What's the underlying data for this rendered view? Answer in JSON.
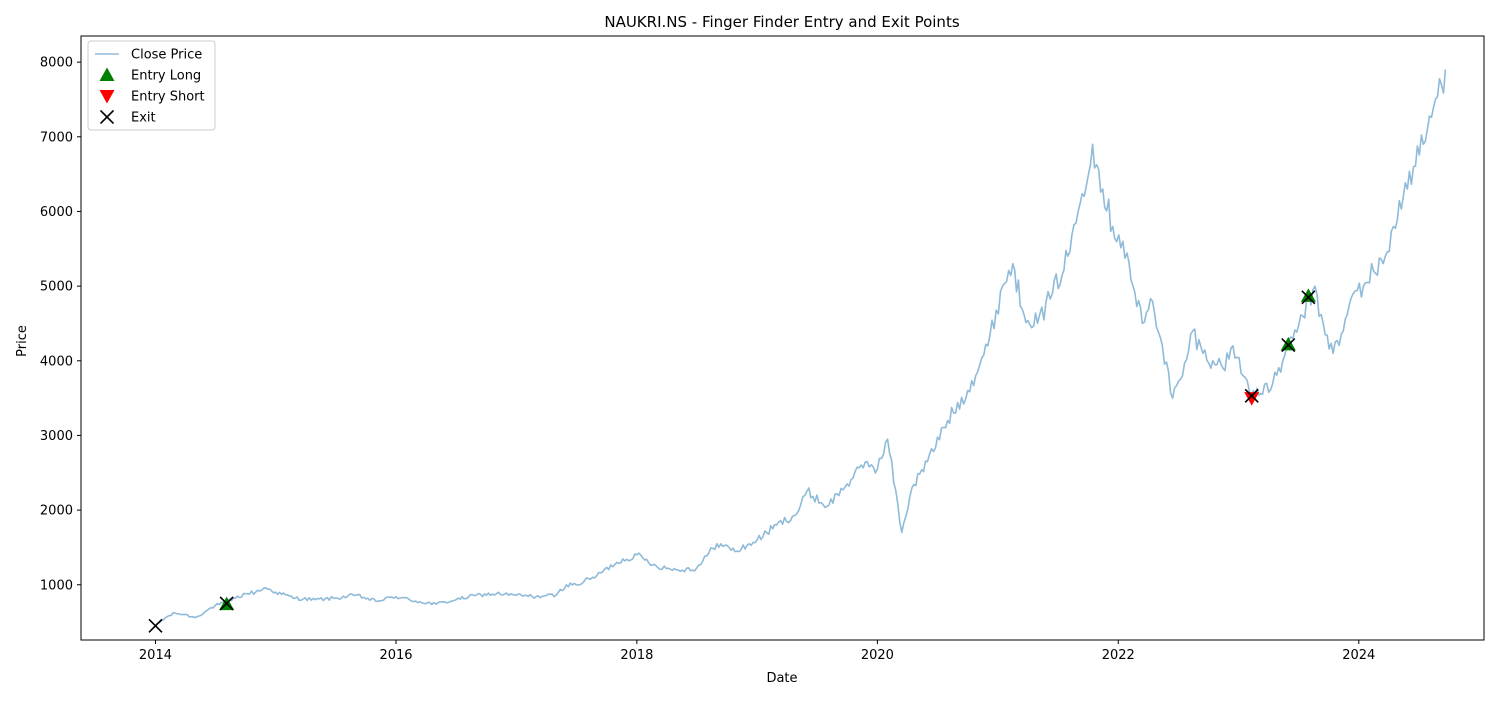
{
  "chart_data": {
    "type": "line",
    "title": "NAUKRI.NS - Finger Finder Entry and Exit Points",
    "xlabel": "Date",
    "ylabel": "Price",
    "xlim": [
      "2013-05-20",
      "2025-01-15"
    ],
    "ylim": [
      260,
      8350
    ],
    "x_ticks": [
      "2014-01-01",
      "2016-01-01",
      "2018-01-01",
      "2020-01-01",
      "2022-01-01",
      "2024-01-01"
    ],
    "x_tick_labels": [
      "2014",
      "2016",
      "2018",
      "2020",
      "2022",
      "2024"
    ],
    "y_ticks": [
      1000,
      2000,
      3000,
      4000,
      5000,
      6000,
      7000,
      8000
    ],
    "y_tick_labels": [
      "1000",
      "2000",
      "3000",
      "4000",
      "5000",
      "6000",
      "7000",
      "8000"
    ],
    "grid": false,
    "legend_position": "top-left",
    "legend": [
      {
        "label": "Close Price",
        "marker": "line",
        "color": "#1f77b4"
      },
      {
        "label": "Entry Long",
        "marker": "triangle-up",
        "color": "#008000"
      },
      {
        "label": "Entry Short",
        "marker": "triangle-down",
        "color": "#ff0000"
      },
      {
        "label": "Exit",
        "marker": "x",
        "color": "#000000"
      }
    ],
    "series": [
      {
        "name": "Close Price",
        "color": "#1f77b4",
        "x": [
          "2014-01-01",
          "2014-02-01",
          "2014-03-01",
          "2014-04-01",
          "2014-05-01",
          "2014-06-01",
          "2014-07-01",
          "2014-08-01",
          "2014-09-01",
          "2014-10-01",
          "2014-11-01",
          "2014-12-01",
          "2015-01-01",
          "2015-03-01",
          "2015-05-01",
          "2015-07-01",
          "2015-09-01",
          "2015-11-01",
          "2016-01-01",
          "2016-03-01",
          "2016-05-01",
          "2016-07-01",
          "2016-09-01",
          "2016-11-01",
          "2017-01-01",
          "2017-03-01",
          "2017-05-01",
          "2017-06-01",
          "2017-07-01",
          "2017-09-01",
          "2017-11-01",
          "2018-01-01",
          "2018-03-01",
          "2018-05-01",
          "2018-07-01",
          "2018-09-01",
          "2018-11-01",
          "2019-01-01",
          "2019-03-01",
          "2019-05-01",
          "2019-06-01",
          "2019-08-01",
          "2019-10-01",
          "2019-12-01",
          "2020-01-01",
          "2020-02-01",
          "2020-03-15",
          "2020-04-15",
          "2020-06-01",
          "2020-08-01",
          "2020-10-01",
          "2020-12-01",
          "2021-01-15",
          "2021-02-15",
          "2021-03-15",
          "2021-05-01",
          "2021-06-15",
          "2021-08-01",
          "2021-09-01",
          "2021-10-15",
          "2021-11-15",
          "2021-12-15",
          "2022-01-15",
          "2022-02-15",
          "2022-03-15",
          "2022-04-15",
          "2022-05-15",
          "2022-06-15",
          "2022-07-15",
          "2022-08-15",
          "2022-09-15",
          "2022-10-15",
          "2022-11-15",
          "2022-12-15",
          "2023-01-15",
          "2023-02-15",
          "2023-03-15",
          "2023-04-15",
          "2023-05-15",
          "2023-06-15",
          "2023-07-15",
          "2023-08-15",
          "2023-09-15",
          "2023-10-15",
          "2023-11-15",
          "2023-12-15",
          "2024-01-15",
          "2024-02-15",
          "2024-03-15",
          "2024-04-15",
          "2024-05-15",
          "2024-06-15",
          "2024-07-15",
          "2024-08-15",
          "2024-09-20"
        ],
        "y": [
          450,
          560,
          620,
          600,
          560,
          640,
          720,
          760,
          820,
          880,
          900,
          960,
          900,
          820,
          800,
          820,
          860,
          780,
          840,
          780,
          740,
          800,
          860,
          880,
          860,
          840,
          860,
          1000,
          1000,
          1120,
          1300,
          1400,
          1250,
          1200,
          1220,
          1550,
          1450,
          1600,
          1800,
          1950,
          2250,
          2050,
          2350,
          2650,
          2550,
          2950,
          1700,
          2300,
          2650,
          3200,
          3600,
          4200,
          5000,
          5300,
          4700,
          4500,
          4900,
          5400,
          6000,
          6900,
          6300,
          5800,
          5600,
          5000,
          4500,
          4800,
          4200,
          3500,
          3800,
          4400,
          4100,
          4000,
          3900,
          4200,
          3800,
          3600,
          3550,
          3700,
          4000,
          4300,
          4600,
          4950,
          4500,
          4100,
          4400,
          4900,
          5000,
          5200,
          5300,
          5800,
          6200,
          6600,
          6900,
          7400,
          7900
        ]
      }
    ],
    "markers": {
      "entry_long": [
        {
          "x": "2014-08-05",
          "y": 740
        },
        {
          "x": "2023-06-01",
          "y": 4220
        },
        {
          "x": "2023-08-01",
          "y": 4870
        }
      ],
      "entry_short": [
        {
          "x": "2023-02-10",
          "y": 3500
        }
      ],
      "exit": [
        {
          "x": "2014-01-01",
          "y": 450
        },
        {
          "x": "2014-08-05",
          "y": 750
        },
        {
          "x": "2023-02-10",
          "y": 3530
        },
        {
          "x": "2023-06-01",
          "y": 4210
        },
        {
          "x": "2023-08-01",
          "y": 4850
        }
      ]
    }
  }
}
